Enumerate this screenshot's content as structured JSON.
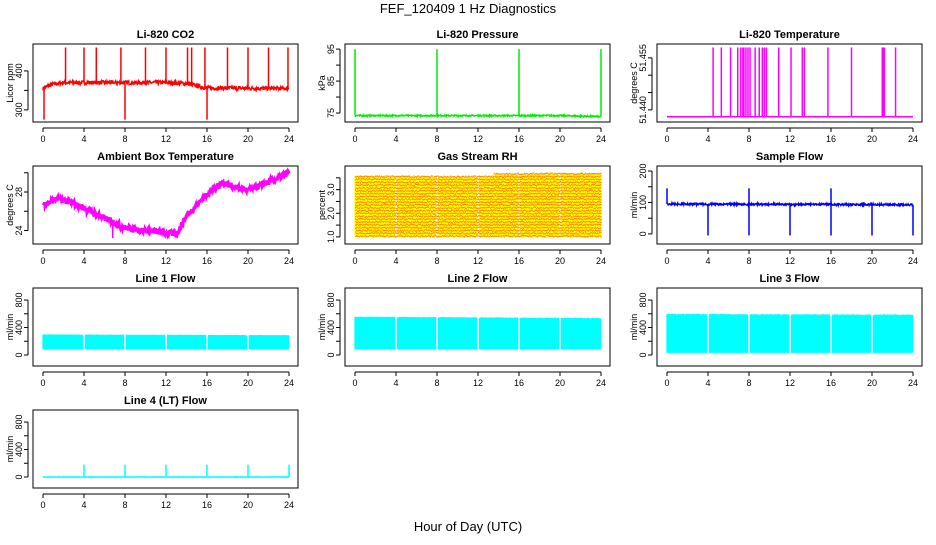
{
  "chart_data": {
    "type": "line",
    "title": "FEF_120409  1 Hz Diagnostics",
    "xlabel": "Hour of Day (UTC)",
    "xlim": [
      0,
      24
    ],
    "xticks": [
      0,
      4,
      8,
      12,
      16,
      20,
      24
    ],
    "grid": false,
    "panels": [
      {
        "title": "Li-820 CO2",
        "ylabel": "Licor ppm",
        "ylim": [
          269,
          469
        ],
        "yticks": [
          300,
          350,
          400
        ],
        "ytick_labels": [
          "300",
          "",
          "400"
        ],
        "color": "#ff0000",
        "kind": "line",
        "baseline": [
          [
            0,
            355
          ],
          [
            0.5,
            362
          ],
          [
            1,
            366
          ],
          [
            2,
            370
          ],
          [
            6,
            370
          ],
          [
            12,
            370
          ],
          [
            14,
            368
          ],
          [
            15,
            362
          ],
          [
            16,
            356
          ],
          [
            24,
            355
          ]
        ],
        "noise": 5,
        "spikes_up": {
          "value": 460,
          "hours": [
            2.2,
            4,
            5.2,
            7.6,
            10,
            12,
            14.1,
            14.5,
            15.8,
            18,
            20,
            22,
            23.9
          ]
        },
        "spikes_down": {
          "value": 275,
          "hours": [
            0.1,
            8,
            16
          ]
        }
      },
      {
        "title": "Li-820 Pressure",
        "ylabel": "kPa",
        "ylim": [
          72.2,
          96.6
        ],
        "yticks": [
          75,
          80,
          85,
          90,
          95
        ],
        "ytick_labels": [
          "75",
          "",
          "85",
          "",
          "95"
        ],
        "color": "#00ee00",
        "kind": "line",
        "baseline": [
          [
            0,
            74.2
          ],
          [
            20,
            74.2
          ],
          [
            24,
            73.9
          ]
        ],
        "noise": 0.2,
        "spikes_up": {
          "value": 95,
          "hours": [
            0,
            8,
            16,
            24
          ]
        },
        "spikes_down": {
          "value": 73,
          "hours": []
        }
      },
      {
        "title": "Li-820 Temperature",
        "ylabel": "degrees C",
        "ylim": [
          51.4365,
          51.459
        ],
        "yticks": [
          51.44,
          51.445,
          51.45,
          51.455
        ],
        "ytick_labels": [
          "51.440",
          "",
          "",
          "51.455"
        ],
        "color": "#ff00ff",
        "kind": "line",
        "baseline": [
          [
            0,
            51.438
          ],
          [
            24,
            51.438
          ]
        ],
        "noise": 0,
        "spikes_up": {
          "value": 51.458,
          "hours": [
            4.5,
            5.3,
            6.2,
            6.9,
            7.2,
            7.4,
            7.5,
            7.7,
            7.9,
            8.1,
            8.6,
            9.0,
            9.3,
            9.5,
            9.7,
            10.9,
            12.1,
            13.2,
            13.4,
            15.7,
            18,
            21,
            21.1,
            21.2,
            22.3
          ]
        },
        "spikes_down": {
          "value": 51.438,
          "hours": []
        }
      },
      {
        "title": "Ambient Box Temperature",
        "ylabel": "degrees C",
        "ylim": [
          22.6,
          30.7
        ],
        "yticks": [
          24,
          26,
          28,
          30
        ],
        "ytick_labels": [
          "24",
          "",
          "28",
          ""
        ],
        "color": "#ff00ff",
        "kind": "line",
        "baseline": [
          [
            0,
            26.7
          ],
          [
            1.5,
            27.3
          ],
          [
            3,
            26.8
          ],
          [
            6,
            25.3
          ],
          [
            8,
            24.3
          ],
          [
            10,
            24.0
          ],
          [
            12,
            23.8
          ],
          [
            13,
            23.6
          ],
          [
            14,
            25.5
          ],
          [
            16,
            27.8
          ],
          [
            17.5,
            29.0
          ],
          [
            19,
            28.4
          ],
          [
            20,
            28.2
          ],
          [
            22,
            29.0
          ],
          [
            24,
            30.0
          ]
        ],
        "noise": 0.3,
        "spikes_up": {
          "value": 0,
          "hours": []
        },
        "spikes_down": {
          "value": 23.2,
          "hours": [
            6.8,
            13.1
          ]
        }
      },
      {
        "title": "Gas Stream RH",
        "ylabel": "percent",
        "ylim": [
          0.7,
          4.0
        ],
        "yticks": [
          1.0,
          1.5,
          2.0,
          2.5,
          3.0,
          3.5
        ],
        "ytick_labels": [
          "1.0",
          "",
          "2.0",
          "",
          "3.0",
          ""
        ],
        "color": "#ff8c00",
        "color2": "#ffff00",
        "kind": "band",
        "upper": [
          [
            0,
            3.6
          ],
          [
            13,
            3.55
          ],
          [
            13.5,
            3.65
          ],
          [
            24,
            3.7
          ]
        ],
        "lower": [
          [
            0,
            1.0
          ],
          [
            24,
            1.0
          ]
        ]
      },
      {
        "title": "Sample Flow",
        "ylabel": "ml/min",
        "ylim": [
          -32,
          216
        ],
        "yticks": [
          0,
          50,
          100,
          150,
          200
        ],
        "ytick_labels": [
          "0",
          "",
          "100",
          "",
          "200"
        ],
        "color": "#0000ff",
        "kind": "line",
        "baseline": [
          [
            0,
            95
          ],
          [
            24,
            93
          ]
        ],
        "noise": 3,
        "spikes_up": {
          "value": 145,
          "hours": [
            0,
            8,
            16
          ]
        },
        "spikes_down": {
          "value": -5,
          "hours": [
            4,
            8,
            12,
            16,
            20,
            24
          ]
        }
      },
      {
        "title": "Line 1 Flow",
        "ylabel": "ml/min",
        "ylim": [
          -160,
          975
        ],
        "yticks": [
          0,
          200,
          400,
          600,
          800
        ],
        "ytick_labels": [
          "0",
          "",
          "400",
          "",
          "800"
        ],
        "color": "#00ffff",
        "kind": "band",
        "upper": [
          [
            0,
            300
          ],
          [
            24,
            290
          ]
        ],
        "lower": [
          [
            0,
            80
          ],
          [
            24,
            80
          ]
        ]
      },
      {
        "title": "Line 2 Flow",
        "ylabel": "ml/min",
        "ylim": [
          -160,
          975
        ],
        "yticks": [
          0,
          200,
          400,
          600,
          800
        ],
        "ytick_labels": [
          "0",
          "",
          "400",
          "",
          "800"
        ],
        "color": "#00ffff",
        "kind": "band",
        "upper": [
          [
            0,
            560
          ],
          [
            24,
            540
          ]
        ],
        "lower": [
          [
            0,
            80
          ],
          [
            24,
            80
          ]
        ]
      },
      {
        "title": "Line 3 Flow",
        "ylabel": "ml/min",
        "ylim": [
          -160,
          975
        ],
        "yticks": [
          0,
          200,
          400,
          600,
          800
        ],
        "ytick_labels": [
          "0",
          "",
          "400",
          "",
          "800"
        ],
        "color": "#00ffff",
        "kind": "band",
        "upper": [
          [
            0,
            600
          ],
          [
            24,
            590
          ]
        ],
        "lower": [
          [
            0,
            30
          ],
          [
            24,
            30
          ]
        ]
      },
      {
        "title": "Line 4 (LT) Flow",
        "ylabel": "ml/min",
        "ylim": [
          -160,
          975
        ],
        "yticks": [
          0,
          200,
          400,
          600,
          800
        ],
        "ytick_labels": [
          "0",
          "",
          "400",
          "",
          "800"
        ],
        "color": "#00ffff",
        "kind": "line",
        "baseline": [
          [
            0,
            0
          ],
          [
            24,
            0
          ]
        ],
        "noise": 2,
        "spikes_up": {
          "value": 180,
          "hours": [
            4,
            8,
            12,
            16,
            20,
            24
          ]
        },
        "spikes_down": {
          "value": 0,
          "hours": []
        }
      }
    ]
  }
}
